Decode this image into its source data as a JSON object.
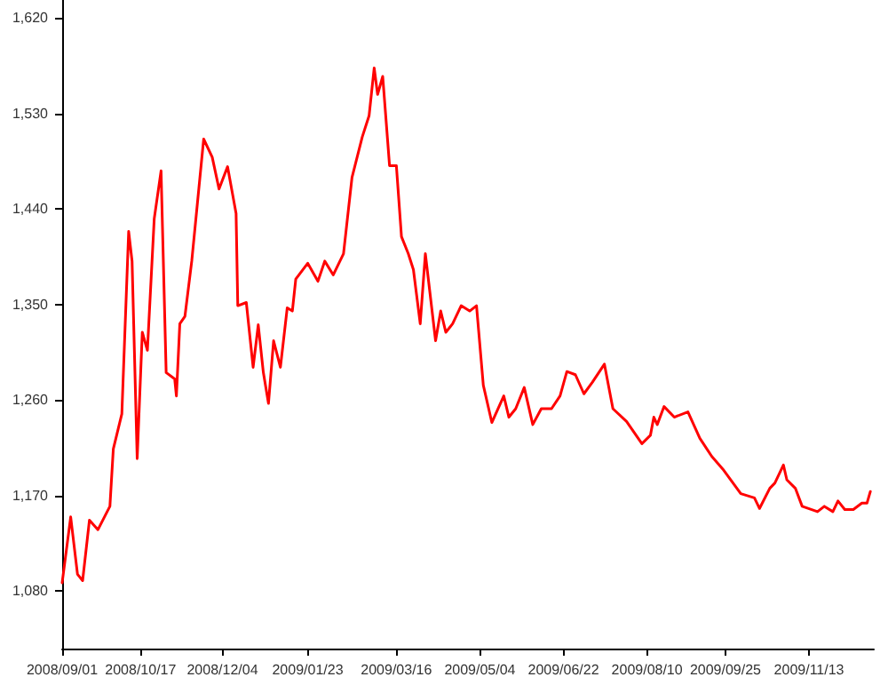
{
  "chart_data": {
    "type": "line",
    "x": [
      "2008-09-01",
      "2008-09-06",
      "2008-09-10",
      "2008-09-13",
      "2008-09-17",
      "2008-09-22",
      "2008-09-29",
      "2008-10-01",
      "2008-10-06",
      "2008-10-10",
      "2008-10-12",
      "2008-10-15",
      "2008-10-18",
      "2008-10-21",
      "2008-10-25",
      "2008-10-29",
      "2008-11-01",
      "2008-11-06",
      "2008-11-07",
      "2008-11-09",
      "2008-11-12",
      "2008-11-16",
      "2008-11-23",
      "2008-11-28",
      "2008-12-02",
      "2008-12-07",
      "2008-12-12",
      "2008-12-13",
      "2008-12-18",
      "2008-12-22",
      "2008-12-25",
      "2008-12-28",
      "2008-12-31",
      "2009-01-03",
      "2009-01-07",
      "2009-01-11",
      "2009-01-14",
      "2009-01-16",
      "2009-01-23",
      "2009-01-29",
      "2009-02-02",
      "2009-02-07",
      "2009-02-13",
      "2009-02-18",
      "2009-02-24",
      "2009-02-28",
      "2009-03-03",
      "2009-03-05",
      "2009-03-08",
      "2009-03-12",
      "2009-03-16",
      "2009-03-19",
      "2009-03-23",
      "2009-03-26",
      "2009-03-30",
      "2009-04-02",
      "2009-04-08",
      "2009-04-11",
      "2009-04-14",
      "2009-04-18",
      "2009-04-23",
      "2009-04-28",
      "2009-05-02",
      "2009-05-06",
      "2009-05-11",
      "2009-05-18",
      "2009-05-21",
      "2009-05-25",
      "2009-05-30",
      "2009-06-04",
      "2009-06-09",
      "2009-06-15",
      "2009-06-20",
      "2009-06-24",
      "2009-06-29",
      "2009-07-04",
      "2009-07-09",
      "2009-07-16",
      "2009-07-21",
      "2009-07-29",
      "2009-08-07",
      "2009-08-12",
      "2009-08-14",
      "2009-08-16",
      "2009-08-20",
      "2009-08-26",
      "2009-09-03",
      "2009-09-10",
      "2009-09-17",
      "2009-09-24",
      "2009-10-04",
      "2009-10-12",
      "2009-10-15",
      "2009-10-21",
      "2009-10-24",
      "2009-10-29",
      "2009-10-31",
      "2009-11-05",
      "2009-11-09",
      "2009-11-18",
      "2009-11-22",
      "2009-11-27",
      "2009-11-30",
      "2009-12-04",
      "2009-12-09",
      "2009-12-14",
      "2009-12-17",
      "2009-12-19"
    ],
    "series": [
      {
        "color": "#ff0000",
        "values": [
          1088,
          1150,
          1096,
          1090,
          1147,
          1138,
          1160,
          1214,
          1247,
          1419,
          1391,
          1205,
          1324,
          1307,
          1431,
          1476,
          1286,
          1280,
          1264,
          1332,
          1339,
          1391,
          1506,
          1489,
          1459,
          1480,
          1436,
          1349,
          1352,
          1291,
          1331,
          1286,
          1257,
          1316,
          1291,
          1347,
          1344,
          1374,
          1389,
          1372,
          1391,
          1378,
          1398,
          1470,
          1508,
          1528,
          1573,
          1548,
          1565,
          1481,
          1481,
          1414,
          1398,
          1383,
          1332,
          1398,
          1316,
          1344,
          1324,
          1332,
          1349,
          1344,
          1349,
          1274,
          1239,
          1264,
          1244,
          1252,
          1272,
          1237,
          1252,
          1252,
          1264,
          1287,
          1284,
          1266,
          1277,
          1294,
          1252,
          1240,
          1219,
          1227,
          1244,
          1237,
          1254,
          1244,
          1249,
          1224,
          1207,
          1194,
          1172,
          1168,
          1158,
          1177,
          1182,
          1199,
          1185,
          1177,
          1160,
          1155,
          1160,
          1155,
          1165,
          1157,
          1157,
          1163,
          1163,
          1174
        ]
      }
    ],
    "xlim": [
      "2008-09-01",
      "2009-12-21"
    ],
    "xticks": [
      {
        "value": "2008-09-01",
        "label": "2008/09/01"
      },
      {
        "value": "2008-10-17",
        "label": "2008/10/17"
      },
      {
        "value": "2008-12-04",
        "label": "2008/12/04"
      },
      {
        "value": "2009-01-23",
        "label": "2009/01/23"
      },
      {
        "value": "2009-03-16",
        "label": "2009/03/16"
      },
      {
        "value": "2009-05-04",
        "label": "2009/05/04"
      },
      {
        "value": "2009-06-22",
        "label": "2009/06/22"
      },
      {
        "value": "2009-08-10",
        "label": "2009/08/10"
      },
      {
        "value": "2009-09-25",
        "label": "2009/09/25"
      },
      {
        "value": "2009-11-13",
        "label": "2009/11/13"
      }
    ],
    "ylim": [
      1026,
      1637
    ],
    "yticks": [
      {
        "value": 1080,
        "label": "1,080"
      },
      {
        "value": 1170,
        "label": "1,170"
      },
      {
        "value": 1260,
        "label": "1,260"
      },
      {
        "value": 1350,
        "label": "1,350"
      },
      {
        "value": 1440,
        "label": "1,440"
      },
      {
        "value": 1530,
        "label": "1,530"
      },
      {
        "value": 1620,
        "label": "1,620"
      }
    ],
    "grid": false,
    "marker": "none",
    "line_style": "solid"
  }
}
